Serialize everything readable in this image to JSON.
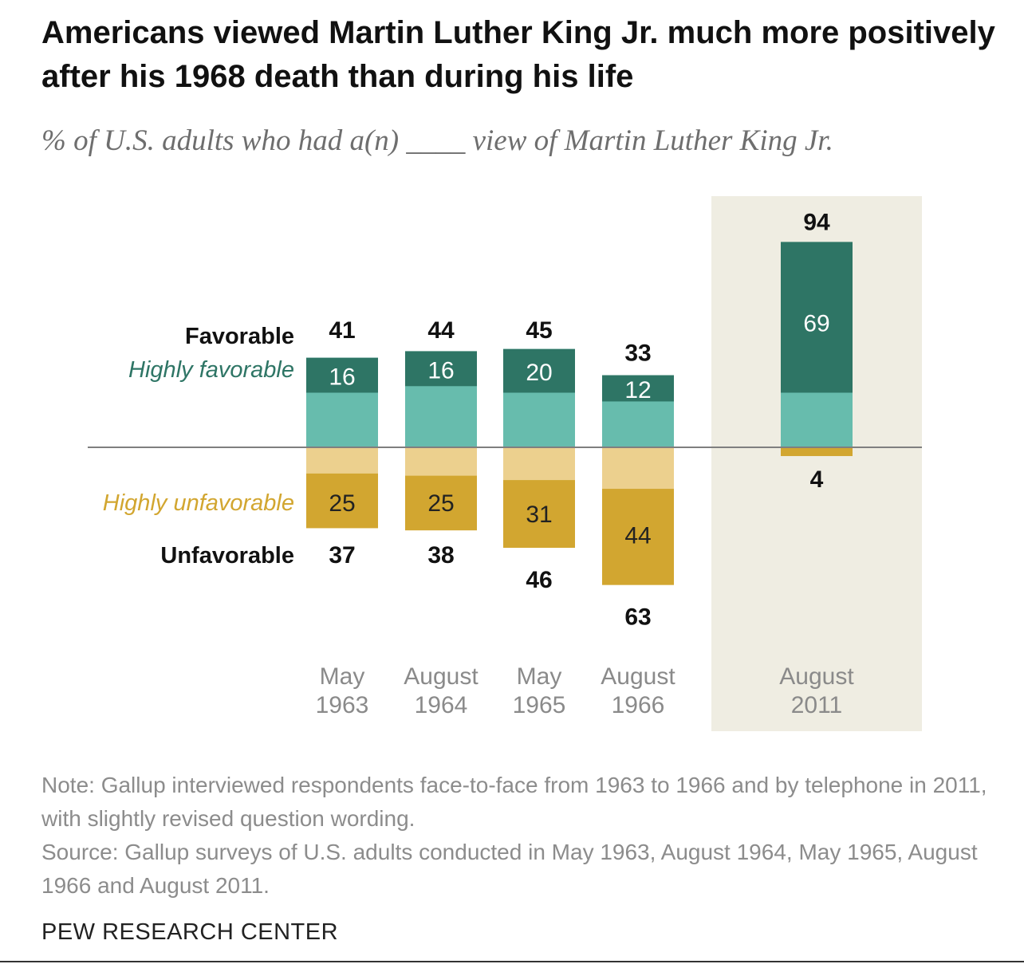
{
  "header": {
    "title": "Americans viewed Martin Luther King Jr. much more positively after his 1968 death than during his life",
    "subtitle": "% of U.S. adults who had a(n) ____ view of Martin Luther King Jr."
  },
  "labels": {
    "favorable": "Favorable",
    "highly_favorable": "Highly favorable",
    "highly_unfavorable": "Highly unfavorable",
    "unfavorable": "Unfavorable"
  },
  "chart_data": {
    "type": "bar",
    "stacked": true,
    "diverging": true,
    "categories": [
      [
        "May",
        "1963"
      ],
      [
        "August",
        "1964"
      ],
      [
        "May",
        "1965"
      ],
      [
        "August",
        "1966"
      ],
      [
        "August",
        "2011"
      ]
    ],
    "favorable": [
      41,
      44,
      45,
      33,
      94
    ],
    "highly_favorable": [
      16,
      16,
      20,
      12,
      69
    ],
    "unfavorable": [
      37,
      38,
      46,
      63,
      4
    ],
    "highly_unfavorable": [
      25,
      25,
      31,
      44,
      null
    ],
    "highlighted_category": [
      "August",
      "2011"
    ],
    "colors": {
      "highly_favorable": "#2e7565",
      "favorable": "#67bcad",
      "unfavorable": "#ecd08e",
      "highly_unfavorable": "#d2a630",
      "highlight_band": "#efede2",
      "baseline": "#7f7f7f"
    }
  },
  "footer": {
    "note": "Note: Gallup interviewed respondents face-to-face from 1963 to 1966 and by telephone in 2011, with slightly revised question wording.",
    "source": "Source: Gallup surveys of U.S. adults conducted in May 1963, August 1964, May 1965, August 1966 and August 2011.",
    "brand": "PEW RESEARCH CENTER"
  }
}
